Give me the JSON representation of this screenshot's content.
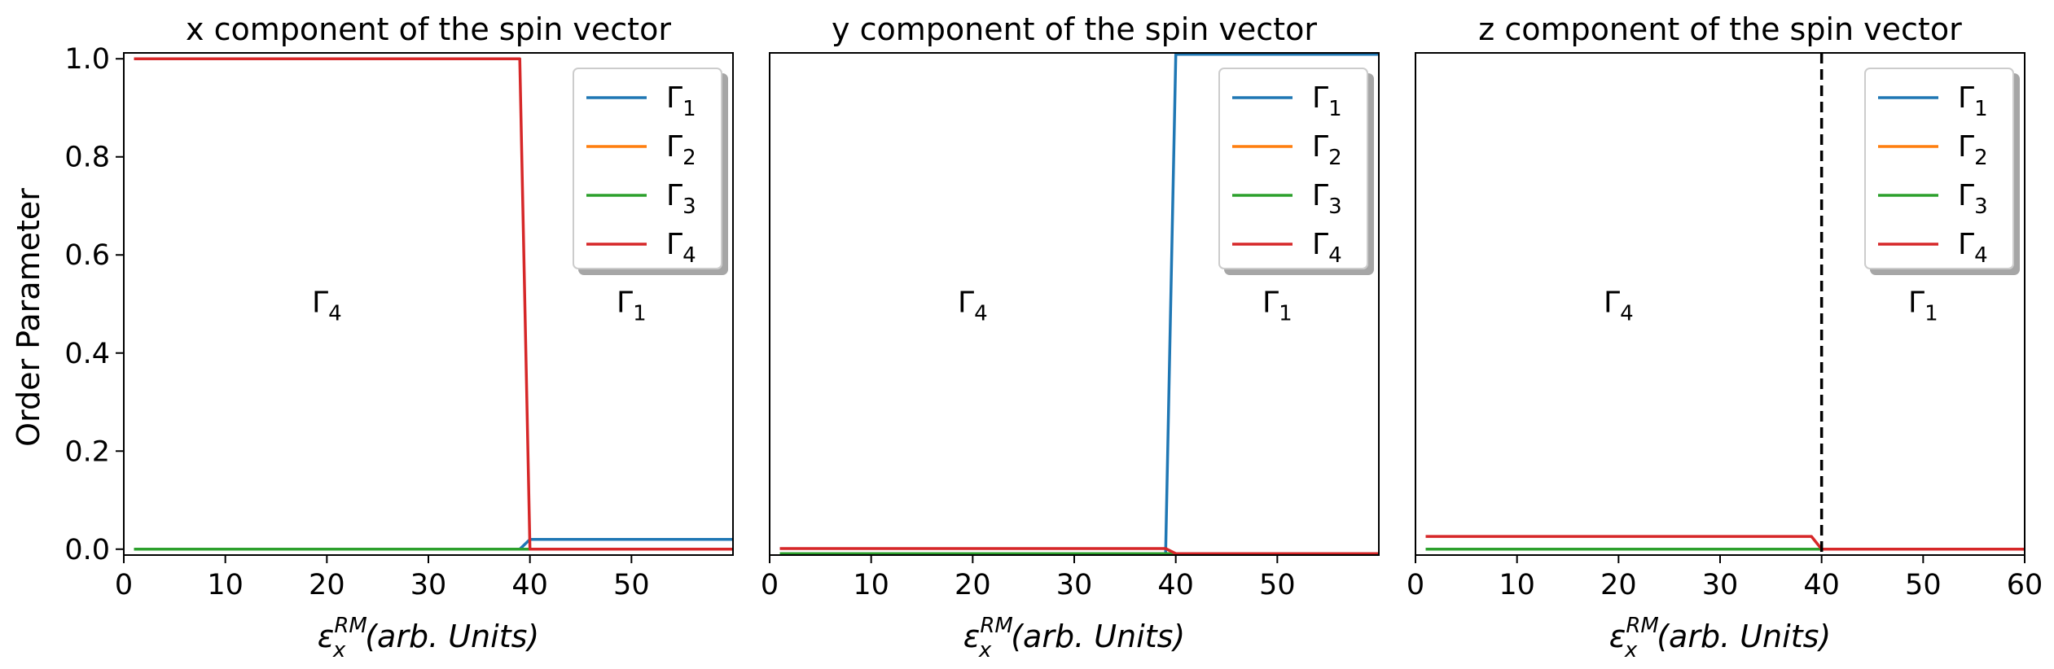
{
  "colors": {
    "gamma1": "#1f77b4",
    "gamma2": "#ff7f0e",
    "gamma3": "#2ca02c",
    "gamma4": "#d62728",
    "vline": "#000000"
  },
  "figure": {
    "ylabel": "Order Parameter",
    "xlabel": {
      "base": "ε",
      "sub": "x",
      "sup": "RM",
      "rest": "(arb. Units)"
    }
  },
  "chart_data": [
    {
      "type": "line",
      "title": "x component of the spin vector",
      "xlim": [
        0,
        60
      ],
      "ylim": [
        -0.012,
        1.012
      ],
      "xticks": [
        0,
        10,
        20,
        30,
        40,
        50
      ],
      "yticks": [
        0.0,
        0.2,
        0.4,
        0.6,
        0.8,
        1.0
      ],
      "ytick_labels": [
        "0.0",
        "0.2",
        "0.4",
        "0.6",
        "0.8",
        "1.0"
      ],
      "legend": {
        "position": "top-right",
        "shadow": true
      },
      "regions": [
        {
          "symbol": "Γ",
          "sub": "4",
          "x": 20,
          "y": 0.5
        },
        {
          "symbol": "Γ",
          "sub": "1",
          "x": 50,
          "y": 0.5
        }
      ],
      "vline": null,
      "series": [
        {
          "name": "Γ",
          "sub": "1",
          "color_key": "gamma1",
          "x": [
            1,
            39,
            40,
            60
          ],
          "y": [
            0,
            0,
            0.02,
            0.02
          ]
        },
        {
          "name": "Γ",
          "sub": "2",
          "color_key": "gamma2",
          "x": [
            1,
            39,
            40,
            60
          ],
          "y": [
            0,
            0,
            0,
            0
          ]
        },
        {
          "name": "Γ",
          "sub": "3",
          "color_key": "gamma3",
          "x": [
            1,
            39,
            40,
            60
          ],
          "y": [
            0,
            0,
            0,
            0
          ]
        },
        {
          "name": "Γ",
          "sub": "4",
          "color_key": "gamma4",
          "x": [
            1,
            39,
            40,
            60
          ],
          "y": [
            1,
            1,
            0,
            0
          ]
        }
      ]
    },
    {
      "type": "line",
      "title": "y component of the spin vector",
      "xlim": [
        0,
        60
      ],
      "ylim": [
        -0.003,
        1.003
      ],
      "xticks": [
        0,
        10,
        20,
        30,
        40,
        50
      ],
      "yticks": [],
      "ytick_labels": [],
      "legend": {
        "position": "top-right",
        "shadow": true
      },
      "regions": [
        {
          "symbol": "Γ",
          "sub": "4",
          "x": 20,
          "y": 0.5
        },
        {
          "symbol": "Γ",
          "sub": "1",
          "x": 50,
          "y": 0.5
        }
      ],
      "vline": null,
      "series": [
        {
          "name": "Γ",
          "sub": "1",
          "color_key": "gamma1",
          "x": [
            1,
            39,
            40,
            60
          ],
          "y": [
            0,
            0,
            1,
            1
          ]
        },
        {
          "name": "Γ",
          "sub": "2",
          "color_key": "gamma2",
          "x": [
            1,
            39,
            40,
            60
          ],
          "y": [
            0,
            0,
            0,
            0
          ]
        },
        {
          "name": "Γ",
          "sub": "3",
          "color_key": "gamma3",
          "x": [
            1,
            39,
            40,
            60
          ],
          "y": [
            0,
            0,
            0,
            0
          ]
        },
        {
          "name": "Γ",
          "sub": "4",
          "color_key": "gamma4",
          "x": [
            1,
            39,
            40,
            60
          ],
          "y": [
            0.01,
            0.01,
            0,
            0
          ]
        }
      ]
    },
    {
      "type": "line",
      "title": "z component of the spin vector",
      "xlim": [
        0,
        60
      ],
      "ylim": [
        -0.012,
        1.012
      ],
      "xticks": [
        0,
        10,
        20,
        30,
        40,
        50,
        60
      ],
      "yticks": [],
      "ytick_labels": [],
      "legend": {
        "position": "top-right",
        "shadow": true
      },
      "regions": [
        {
          "symbol": "Γ",
          "sub": "4",
          "x": 20,
          "y": 0.5
        },
        {
          "symbol": "Γ",
          "sub": "1",
          "x": 50,
          "y": 0.5
        }
      ],
      "vline": 40,
      "series": [
        {
          "name": "Γ",
          "sub": "1",
          "color_key": "gamma1",
          "x": [
            1,
            39,
            40,
            60
          ],
          "y": [
            0,
            0,
            0,
            0
          ]
        },
        {
          "name": "Γ",
          "sub": "2",
          "color_key": "gamma2",
          "x": [
            1,
            39,
            40,
            60
          ],
          "y": [
            0,
            0,
            0,
            0
          ]
        },
        {
          "name": "Γ",
          "sub": "3",
          "color_key": "gamma3",
          "x": [
            1,
            39,
            40,
            60
          ],
          "y": [
            0,
            0,
            0,
            0
          ]
        },
        {
          "name": "Γ",
          "sub": "4",
          "color_key": "gamma4",
          "x": [
            1,
            39,
            40,
            60
          ],
          "y": [
            0.026,
            0.026,
            0,
            0
          ]
        }
      ]
    }
  ]
}
